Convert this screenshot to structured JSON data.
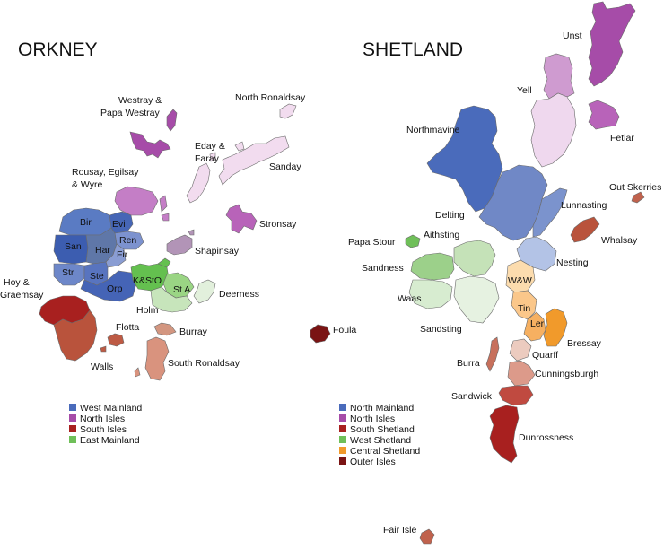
{
  "titles": {
    "orkney": "ORKNEY",
    "shetland": "SHETLAND"
  },
  "groups": {
    "west_mainland": "#4a6bbb",
    "north_isles": "#a64ca8",
    "south_isles": "#a8201f",
    "east_mainland": "#6fbf59",
    "north_mainland": "#4a6bbb",
    "north_isles_sh": "#a64ca8",
    "south_shetland": "#a8201f",
    "west_shetland": "#6fbf59",
    "central_shetland": "#f19a2b",
    "outer_isles": "#7a1414"
  },
  "orkney": {
    "labels": {
      "westray_1": "Westray &",
      "westray_2": "Papa Westray",
      "north_ronaldsay": "North Ronaldsay",
      "eday_1": "Eday &",
      "eday_2": "Faray",
      "sanday": "Sanday",
      "rousay_1": "Rousay, Egilsay",
      "rousay_2": "& Wyre",
      "stronsay": "Stronsay",
      "shapinsay": "Shapinsay",
      "bir": "Bir",
      "evi": "Evi",
      "ren": "Ren",
      "san": "San",
      "har": "Har",
      "fir": "Fir",
      "str": "Str",
      "ste": "Ste",
      "orp": "Orp",
      "ksto": "K&StO",
      "sta": "St A",
      "deerness": "Deerness",
      "hoy_1": "Hoy &",
      "hoy_2": "Graemsay",
      "holm": "Holm",
      "flotta": "Flotta",
      "burray": "Burray",
      "walls": "Walls",
      "south_ronaldsay": "South Ronaldsay"
    },
    "legend": [
      {
        "label": "West Mainland",
        "color": "#4a6bbb"
      },
      {
        "label": "North Isles",
        "color": "#a64ca8"
      },
      {
        "label": "South Isles",
        "color": "#a8201f"
      },
      {
        "label": "East Mainland",
        "color": "#6fbf59"
      }
    ]
  },
  "shetland": {
    "labels": {
      "unst": "Unst",
      "yell": "Yell",
      "fetlar": "Fetlar",
      "northmavine": "Northmavine",
      "out_skerries": "Out Skerries",
      "delting": "Delting",
      "lunnasting": "Lunnasting",
      "whalsay": "Whalsay",
      "papa_stour": "Papa Stour",
      "aithsting": "Aithsting",
      "sandness": "Sandness",
      "nesting": "Nesting",
      "ww": "W&W",
      "waas": "Waas",
      "tin": "Tin",
      "ler": "Ler",
      "sandsting": "Sandsting",
      "bressay": "Bressay",
      "foula": "Foula",
      "burra": "Burra",
      "quarff": "Quarff",
      "cunningsburgh": "Cunningsburgh",
      "sandwick": "Sandwick",
      "dunrossness": "Dunrossness",
      "fair_isle": "Fair Isle"
    },
    "legend": [
      {
        "label": "North Mainland",
        "color": "#4a6bbb"
      },
      {
        "label": "North Isles",
        "color": "#a64ca8"
      },
      {
        "label": "South Shetland",
        "color": "#a8201f"
      },
      {
        "label": "West Shetland",
        "color": "#6fbf59"
      },
      {
        "label": "Central Shetland",
        "color": "#f19a2b"
      },
      {
        "label": "Outer Isles",
        "color": "#7a1414"
      }
    ]
  }
}
